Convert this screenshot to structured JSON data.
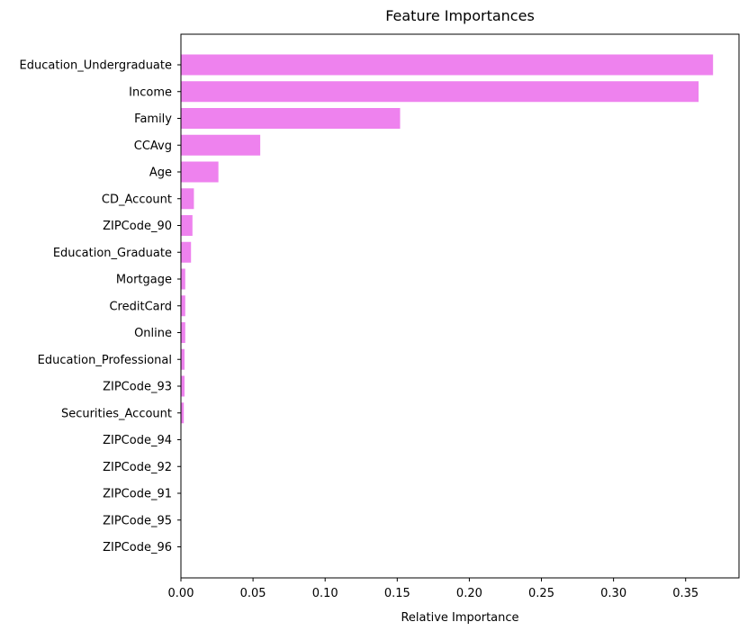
{
  "chart_data": {
    "type": "bar",
    "orientation": "horizontal",
    "title": "Feature Importances",
    "xlabel": "Relative Importance",
    "ylabel": "",
    "xlim": [
      0,
      0.387
    ],
    "xticks": [
      0.0,
      0.05,
      0.1,
      0.15,
      0.2,
      0.25,
      0.3,
      0.35
    ],
    "xtick_labels": [
      "0.00",
      "0.05",
      "0.10",
      "0.15",
      "0.20",
      "0.25",
      "0.30",
      "0.35"
    ],
    "grid": false,
    "bar_color": "#ee82ee",
    "categories": [
      "Education_Undergraduate",
      "Income",
      "Family",
      "CCAvg",
      "Age",
      "CD_Account",
      "ZIPCode_90",
      "Education_Graduate",
      "Mortgage",
      "CreditCard",
      "Online",
      "Education_Professional",
      "ZIPCode_93",
      "Securities_Account",
      "ZIPCode_94",
      "ZIPCode_92",
      "ZIPCode_91",
      "ZIPCode_95",
      "ZIPCode_96"
    ],
    "values": [
      0.369,
      0.359,
      0.152,
      0.055,
      0.026,
      0.009,
      0.008,
      0.007,
      0.003,
      0.003,
      0.003,
      0.0025,
      0.0025,
      0.002,
      0.0,
      0.0,
      0.0,
      0.0,
      0.0
    ]
  }
}
